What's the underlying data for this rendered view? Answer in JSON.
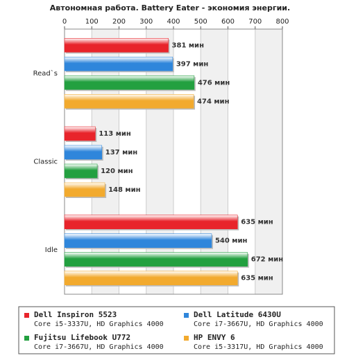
{
  "chart_data": {
    "type": "bar",
    "orientation": "horizontal",
    "title": "Автономная работа. Battery Eater - экономия энергии.",
    "categories": [
      "Read`s",
      "Classic",
      "Idle"
    ],
    "xlim": [
      0,
      800
    ],
    "xticks": [
      0,
      100,
      200,
      300,
      400,
      500,
      600,
      700,
      800
    ],
    "grid": true,
    "series": [
      {
        "name": "Dell Inspiron 5523",
        "description": "Core i5-3337U, HD Graphics 4000",
        "color": "#e8242b",
        "values": [
          381,
          113,
          635
        ],
        "value_labels": [
          "381 мин",
          "113 мин",
          "635 мин"
        ]
      },
      {
        "name": "Dell Latitude 6430U",
        "description": "Core i7-3667U, HD Graphics 4000",
        "color": "#2f86db",
        "values": [
          397,
          137,
          540
        ],
        "value_labels": [
          "397 мин",
          "137 мин",
          "540 мин"
        ]
      },
      {
        "name": "Fujitsu Lifebook U772",
        "description": "Core i7-3667U, HD Graphics 4000",
        "color": "#23a040",
        "values": [
          476,
          120,
          672
        ],
        "value_labels": [
          "476 мин",
          "120 мин",
          "672 мин"
        ]
      },
      {
        "name": "HP ENVY 6",
        "description": "Core i5-3317U, HD Graphics 4000",
        "color": "#f2aa2e",
        "values": [
          474,
          148,
          635
        ],
        "value_labels": [
          "474 мин",
          "148 мин",
          "635 мин"
        ]
      }
    ]
  }
}
